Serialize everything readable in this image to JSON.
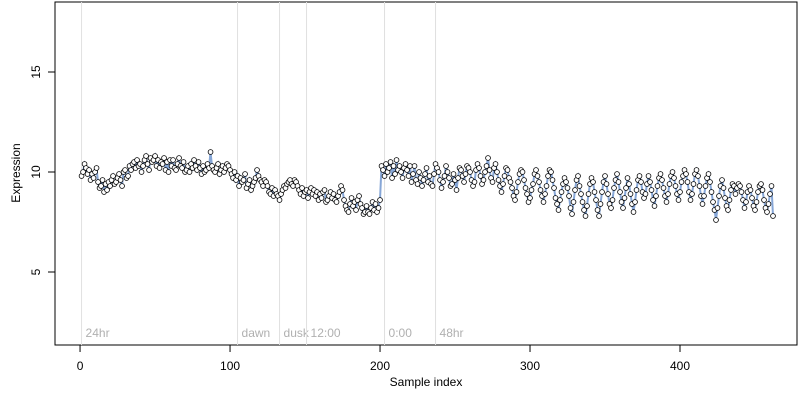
{
  "chart_data": {
    "type": "line",
    "xlabel": "Sample index",
    "ylabel": "Expression",
    "xlim": [
      -16.7,
      478
    ],
    "ylim": [
      1.35,
      18.5
    ],
    "xticks": [
      0,
      100,
      200,
      300,
      400
    ],
    "yticks": [
      5,
      10,
      15
    ],
    "line_color": "#86a6d6",
    "point_fill": "#ffffff",
    "point_stroke": "#000000",
    "annotation_color": "#b0b0b0",
    "annotation_line_color": "#e0e0e0",
    "annotations": [
      {
        "x": 1,
        "label": "24hr"
      },
      {
        "x": 105,
        "label": "dawn"
      },
      {
        "x": 133,
        "label": "dusk"
      },
      {
        "x": 151,
        "label": "12:00"
      },
      {
        "x": 203,
        "label": "0:00"
      },
      {
        "x": 237,
        "label": "48hr"
      }
    ],
    "values": [
      9.8,
      10.0,
      10.4,
      10.2,
      9.9,
      10.1,
      9.6,
      9.9,
      9.7,
      10.0,
      10.2,
      9.5,
      9.2,
      9.3,
      9.6,
      9.0,
      9.4,
      9.1,
      9.5,
      9.3,
      9.6,
      9.8,
      9.4,
      9.5,
      9.7,
      9.9,
      9.6,
      9.3,
      10.0,
      10.1,
      9.7,
      9.8,
      10.3,
      10.1,
      10.4,
      10.5,
      10.2,
      10.6,
      10.3,
      10.4,
      10.0,
      10.3,
      10.6,
      10.8,
      10.4,
      10.1,
      10.7,
      10.5,
      10.6,
      10.8,
      10.3,
      10.6,
      10.2,
      10.5,
      10.4,
      10.7,
      10.1,
      10.5,
      10.0,
      10.6,
      10.3,
      10.6,
      10.2,
      10.1,
      10.4,
      10.7,
      10.3,
      10.2,
      10.5,
      10.0,
      10.1,
      10.3,
      10.0,
      10.4,
      10.2,
      10.6,
      10.3,
      10.1,
      10.5,
      10.2,
      9.9,
      10.3,
      10.0,
      10.1,
      10.4,
      10.2,
      11.0,
      10.3,
      10.1,
      10.0,
      10.2,
      10.4,
      9.9,
      10.1,
      10.3,
      10.0,
      10.2,
      10.4,
      10.3,
      10.1,
      9.9,
      9.7,
      10.0,
      9.6,
      9.8,
      9.3,
      9.7,
      9.5,
      9.6,
      9.9,
      9.2,
      9.4,
      9.6,
      9.1,
      9.3,
      9.5,
      9.7,
      10.1,
      9.8,
      9.6,
      9.5,
      9.3,
      9.6,
      9.5,
      9.3,
      9.0,
      8.9,
      9.2,
      8.8,
      9.1,
      8.9,
      8.8,
      8.6,
      8.9,
      9.1,
      9.3,
      9.2,
      9.4,
      9.5,
      9.6,
      9.4,
      9.3,
      9.6,
      9.5,
      9.3,
      9.1,
      8.9,
      9.2,
      8.8,
      9.0,
      9.1,
      8.7,
      9.0,
      9.2,
      8.9,
      9.1,
      8.8,
      9.0,
      8.6,
      8.9,
      8.7,
      9.0,
      9.1,
      8.5,
      8.6,
      8.8,
      9.0,
      8.7,
      8.9,
      8.6,
      8.5,
      8.8,
      9.0,
      9.3,
      9.1,
      8.6,
      8.3,
      8.1,
      8.0,
      8.4,
      8.7,
      8.3,
      8.5,
      8.1,
      8.6,
      8.8,
      8.4,
      8.2,
      7.9,
      8.0,
      8.3,
      8.0,
      7.9,
      8.2,
      8.5,
      8.1,
      8.4,
      8.0,
      8.2,
      8.6,
      10.3,
      10.1,
      9.8,
      10.4,
      10.0,
      10.2,
      10.5,
      9.7,
      10.3,
      9.9,
      10.6,
      10.1,
      10.3,
      10.0,
      9.7,
      10.2,
      10.4,
      10.1,
      9.8,
      10.3,
      9.5,
      9.9,
      10.3,
      9.6,
      9.4,
      10.0,
      9.7,
      9.3,
      9.6,
      9.9,
      10.2,
      9.5,
      9.8,
      9.4,
      9.3,
      9.9,
      10.4,
      10.2,
      10.0,
      9.6,
      9.2,
      9.5,
      9.8,
      10.3,
      10.0,
      9.7,
      9.3,
      9.4,
      9.9,
      9.6,
      9.1,
      9.7,
      10.2,
      10.1,
      9.8,
      9.5,
      9.9,
      10.3,
      10.2,
      10.0,
      9.6,
      9.3,
      9.5,
      10.1,
      10.4,
      10.2,
      9.8,
      9.4,
      9.6,
      10.0,
      10.3,
      10.7,
      10.1,
      9.7,
      9.5,
      10.2,
      10.4,
      10.0,
      9.6,
      9.3,
      9.0,
      9.4,
      9.8,
      10.2,
      10.1,
      9.7,
      9.5,
      9.2,
      8.8,
      8.6,
      9.0,
      9.5,
      9.9,
      10.1,
      10.0,
      9.6,
      9.2,
      8.9,
      8.5,
      8.7,
      9.1,
      9.4,
      9.9,
      10.1,
      9.8,
      9.5,
      9.1,
      8.8,
      8.5,
      8.9,
      9.3,
      9.8,
      10.1,
      10.0,
      9.6,
      9.2,
      8.7,
      8.4,
      8.1,
      8.6,
      9.0,
      9.4,
      9.7,
      9.5,
      9.2,
      8.8,
      8.2,
      7.9,
      8.5,
      9.1,
      9.6,
      9.8,
      9.3,
      8.9,
      8.5,
      8.1,
      7.8,
      8.3,
      8.9,
      9.4,
      9.7,
      9.5,
      9.0,
      8.6,
      8.1,
      7.8,
      8.4,
      9.0,
      9.5,
      9.8,
      9.4,
      8.9,
      8.4,
      8.2,
      8.6,
      9.2,
      9.6,
      9.9,
      9.5,
      9.0,
      8.5,
      8.2,
      8.7,
      9.2,
      9.7,
      9.4,
      8.9,
      8.4,
      8.0,
      8.5,
      9.1,
      9.6,
      9.8,
      9.5,
      9.0,
      8.7,
      8.9,
      9.4,
      9.8,
      9.5,
      9.1,
      8.6,
      8.3,
      8.8,
      9.3,
      9.7,
      9.9,
      9.6,
      9.2,
      8.8,
      8.5,
      8.9,
      9.4,
      9.8,
      10.0,
      9.7,
      9.3,
      8.9,
      8.6,
      9.0,
      9.5,
      9.8,
      10.1,
      9.9,
      9.5,
      9.0,
      8.6,
      8.9,
      9.4,
      9.9,
      10.1,
      9.8,
      9.3,
      8.8,
      8.4,
      8.8,
      9.3,
      9.7,
      9.9,
      9.5,
      9.0,
      8.5,
      8.1,
      7.6,
      8.2,
      8.8,
      9.3,
      9.6,
      9.2,
      8.7,
      8.3,
      8.1,
      8.6,
      9.1,
      9.4,
      9.3,
      8.9,
      9.2,
      9.4,
      9.3,
      9.0,
      8.6,
      8.2,
      8.5,
      9.0,
      9.3,
      9.1,
      8.7,
      8.3,
      8.1,
      8.5,
      9.0,
      9.3,
      9.4,
      9.1,
      8.6,
      8.2,
      8.0,
      8.4,
      8.9,
      9.3,
      7.8
    ]
  }
}
